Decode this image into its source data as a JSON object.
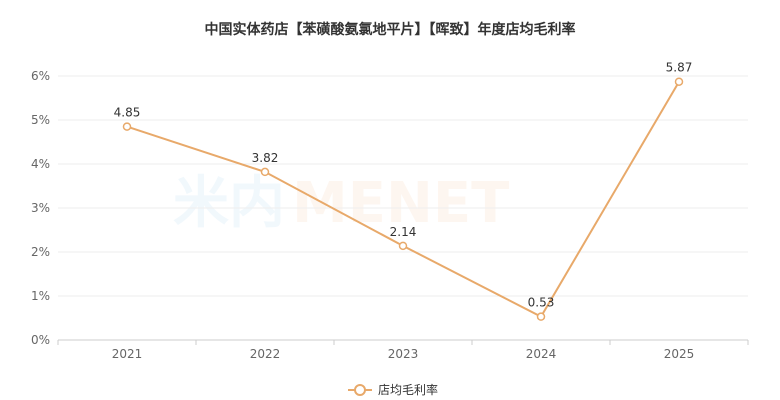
{
  "chart_data": {
    "type": "line",
    "title": "中国实体药店【苯磺酸氨氯地平片】【晖致】年度店均毛利率",
    "x": [
      "2021",
      "2022",
      "2023",
      "2024",
      "2025"
    ],
    "series": [
      {
        "name": "店均毛利率",
        "values": [
          4.85,
          3.82,
          2.14,
          0.53,
          5.87
        ],
        "color": "#e8a96a"
      }
    ],
    "ylim": [
      0,
      6
    ],
    "yticks": [
      0,
      1,
      2,
      3,
      4,
      5,
      6
    ],
    "ytick_labels": [
      "0%",
      "1%",
      "2%",
      "3%",
      "4%",
      "5%",
      "6%"
    ],
    "grid": true,
    "legend_position": "bottom-center",
    "watermark": {
      "left": "米内",
      "right": "MENET"
    }
  }
}
